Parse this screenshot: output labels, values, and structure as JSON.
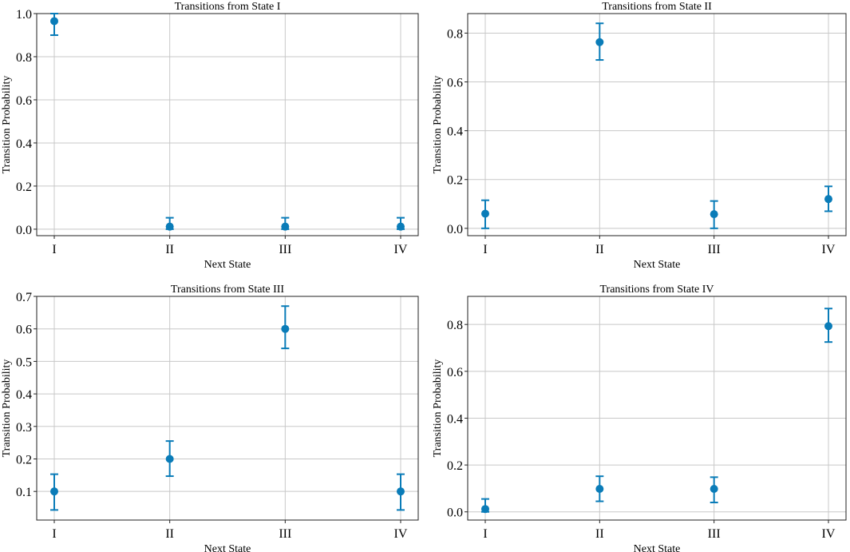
{
  "colors": {
    "marker": "#0a7cb8",
    "grid": "#c8c8c8",
    "frame": "#222222"
  },
  "chart_data": [
    {
      "type": "scatter",
      "title": "Transitions from State I",
      "xlabel": "Next State",
      "ylabel": "Transition Probability",
      "categories": [
        "I",
        "II",
        "III",
        "IV"
      ],
      "values": [
        0.965,
        0.012,
        0.012,
        0.012
      ],
      "error_low": [
        0.9,
        0.0,
        0.0,
        0.0
      ],
      "error_high": [
        1.0,
        0.053,
        0.053,
        0.053
      ],
      "ylim": [
        -0.03,
        1.0
      ],
      "yticks": [
        0.0,
        0.2,
        0.4,
        0.6,
        0.8,
        1.0
      ],
      "ytick_labels": [
        "0.0",
        "0.2",
        "0.4",
        "0.6",
        "0.8",
        "1.0"
      ],
      "grid": true
    },
    {
      "type": "scatter",
      "title": "Transitions from State II",
      "xlabel": "Next State",
      "ylabel": "Transition Probability",
      "categories": [
        "I",
        "II",
        "III",
        "IV"
      ],
      "values": [
        0.06,
        0.763,
        0.058,
        0.12
      ],
      "error_low": [
        0.0,
        0.69,
        0.0,
        0.07
      ],
      "error_high": [
        0.115,
        0.84,
        0.112,
        0.172
      ],
      "ylim": [
        -0.03,
        0.88
      ],
      "yticks": [
        0.0,
        0.2,
        0.4,
        0.6,
        0.8
      ],
      "ytick_labels": [
        "0.0",
        "0.2",
        "0.4",
        "0.6",
        "0.8"
      ],
      "grid": true
    },
    {
      "type": "scatter",
      "title": "Transitions from State III",
      "xlabel": "Next State",
      "ylabel": "Transition Probability",
      "categories": [
        "I",
        "II",
        "III",
        "IV"
      ],
      "values": [
        0.1,
        0.2,
        0.6,
        0.1
      ],
      "error_low": [
        0.043,
        0.147,
        0.54,
        0.043
      ],
      "error_high": [
        0.153,
        0.255,
        0.67,
        0.153
      ],
      "ylim": [
        0.012,
        0.7
      ],
      "yticks": [
        0.1,
        0.2,
        0.3,
        0.4,
        0.5,
        0.6,
        0.7
      ],
      "ytick_labels": [
        "0.1",
        "0.2",
        "0.3",
        "0.4",
        "0.5",
        "0.6",
        "0.7"
      ],
      "grid": true
    },
    {
      "type": "scatter",
      "title": "Transitions from State IV",
      "xlabel": "Next State",
      "ylabel": "Transition Probability",
      "categories": [
        "I",
        "II",
        "III",
        "IV"
      ],
      "values": [
        0.012,
        0.098,
        0.098,
        0.793
      ],
      "error_low": [
        0.0,
        0.045,
        0.04,
        0.725
      ],
      "error_high": [
        0.055,
        0.152,
        0.148,
        0.868
      ],
      "ylim": [
        -0.035,
        0.92
      ],
      "yticks": [
        0.0,
        0.2,
        0.4,
        0.6,
        0.8
      ],
      "ytick_labels": [
        "0.0",
        "0.2",
        "0.4",
        "0.6",
        "0.8"
      ],
      "grid": true
    }
  ]
}
